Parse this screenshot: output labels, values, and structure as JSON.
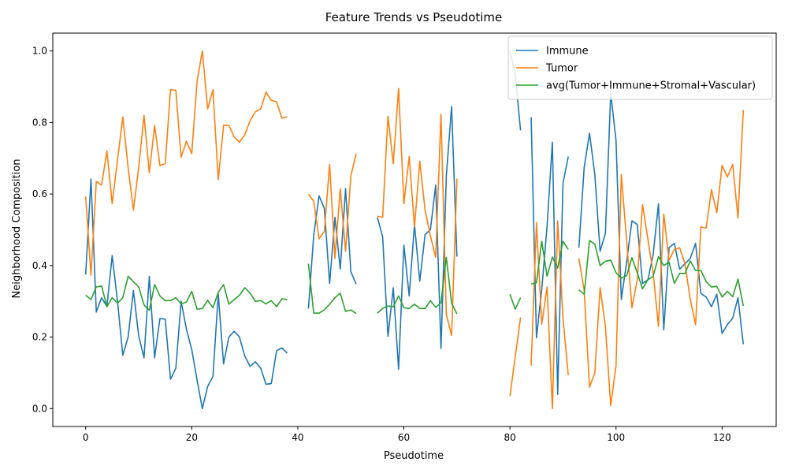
{
  "chart_data": {
    "type": "line",
    "title": "Feature Trends vs Pseudotime",
    "xlabel": "Pseudotime",
    "ylabel": "Neighborhood Composition",
    "xlim": [
      -6.2,
      130.2
    ],
    "ylim": [
      -0.05,
      1.05
    ],
    "xticks": [
      0,
      20,
      40,
      60,
      80,
      100,
      120
    ],
    "yticks": [
      0.0,
      0.2,
      0.4,
      0.6,
      0.8,
      1.0
    ],
    "grid": false,
    "legend_position": "top-right",
    "x": [
      0,
      1,
      2,
      3,
      4,
      5,
      6,
      7,
      8,
      9,
      10,
      11,
      12,
      13,
      14,
      15,
      16,
      17,
      18,
      19,
      20,
      21,
      22,
      23,
      24,
      25,
      26,
      27,
      28,
      29,
      30,
      31,
      32,
      33,
      34,
      35,
      36,
      37,
      38,
      39,
      40,
      41,
      42,
      43,
      44,
      45,
      46,
      47,
      48,
      49,
      50,
      51,
      52,
      53,
      54,
      55,
      56,
      57,
      58,
      59,
      60,
      61,
      62,
      63,
      64,
      65,
      66,
      67,
      68,
      69,
      70,
      71,
      72,
      73,
      74,
      75,
      76,
      77,
      78,
      79,
      80,
      81,
      82,
      83,
      84,
      85,
      86,
      87,
      88,
      89,
      90,
      91,
      92,
      93,
      94,
      95,
      96,
      97,
      98,
      99,
      100,
      101,
      102,
      103,
      104,
      105,
      106,
      107,
      108,
      109,
      110,
      111,
      112,
      113,
      114,
      115,
      116,
      117,
      118,
      119,
      120,
      121,
      122,
      123,
      124
    ],
    "series": [
      {
        "name": "Immune",
        "color": "#1f77b4",
        "values": [
          0.375,
          0.642,
          0.27,
          0.31,
          0.286,
          0.428,
          0.3,
          0.149,
          0.2,
          0.33,
          0.203,
          0.142,
          0.37,
          0.142,
          0.252,
          0.25,
          0.082,
          0.113,
          0.3,
          0.222,
          0.165,
          0.08,
          0.0,
          0.062,
          0.09,
          0.32,
          0.125,
          0.2,
          0.216,
          0.2,
          0.147,
          0.118,
          0.131,
          0.113,
          0.068,
          0.07,
          0.162,
          0.17,
          0.155,
          null,
          null,
          null,
          0.28,
          0.485,
          0.595,
          0.56,
          0.35,
          0.535,
          0.39,
          0.615,
          0.383,
          0.348,
          null,
          null,
          null,
          0.535,
          0.48,
          0.202,
          0.338,
          0.11,
          0.457,
          0.315,
          0.515,
          0.356,
          0.487,
          0.5,
          0.625,
          0.168,
          0.65,
          0.845,
          0.425,
          null,
          null,
          null,
          null,
          null,
          null,
          null,
          null,
          null,
          1.0,
          0.935,
          0.778,
          null,
          0.815,
          0.198,
          0.334,
          0.51,
          0.745,
          0.04,
          0.63,
          0.705,
          null,
          0.45,
          0.675,
          0.77,
          0.655,
          0.44,
          0.49,
          0.882,
          0.75,
          0.305,
          0.41,
          0.525,
          0.515,
          0.35,
          0.36,
          0.43,
          0.573,
          0.22,
          0.45,
          0.462,
          0.39,
          0.405,
          0.42,
          0.462,
          0.322,
          0.312,
          0.285,
          0.32,
          0.21,
          0.235,
          0.253,
          0.31,
          0.18
        ]
      },
      {
        "name": "Tumor",
        "color": "#ff7f0e",
        "values": [
          0.593,
          0.373,
          0.635,
          0.625,
          0.72,
          0.573,
          0.695,
          0.815,
          0.675,
          0.555,
          0.675,
          0.82,
          0.66,
          0.792,
          0.68,
          0.685,
          0.892,
          0.89,
          0.703,
          0.748,
          0.713,
          0.915,
          1.0,
          0.838,
          0.892,
          0.64,
          0.792,
          0.792,
          0.76,
          0.745,
          0.766,
          0.805,
          0.83,
          0.838,
          0.885,
          0.862,
          0.858,
          0.812,
          0.816,
          null,
          null,
          null,
          0.6,
          0.58,
          0.475,
          0.495,
          0.683,
          0.42,
          0.615,
          0.44,
          0.65,
          0.713,
          null,
          null,
          null,
          0.538,
          0.535,
          0.818,
          0.685,
          0.895,
          0.573,
          0.705,
          0.508,
          0.692,
          0.555,
          0.483,
          0.423,
          0.823,
          0.263,
          0.205,
          0.643,
          null,
          null,
          null,
          null,
          null,
          null,
          null,
          null,
          null,
          0.035,
          0.145,
          0.255,
          null,
          0.12,
          0.52,
          0.236,
          0.34,
          0.0,
          0.525,
          0.252,
          0.093,
          null,
          0.42,
          0.33,
          0.06,
          0.1,
          0.338,
          0.23,
          0.008,
          0.12,
          0.655,
          0.47,
          0.282,
          0.36,
          0.57,
          0.475,
          0.38,
          0.23,
          0.544,
          0.415,
          0.445,
          0.45,
          0.405,
          0.305,
          0.235,
          0.508,
          0.505,
          0.612,
          0.548,
          0.68,
          0.648,
          0.683,
          0.533,
          0.835
        ]
      },
      {
        "name": "avg(Tumor+Immune+Stromal+Vascular)",
        "color": "#2ca02c",
        "values": [
          0.317,
          0.305,
          0.34,
          0.343,
          0.285,
          0.31,
          0.295,
          0.31,
          0.37,
          0.355,
          0.34,
          0.29,
          0.275,
          0.347,
          0.315,
          0.302,
          0.302,
          0.31,
          0.293,
          0.298,
          0.328,
          0.278,
          0.28,
          0.303,
          0.282,
          0.325,
          0.347,
          0.292,
          0.305,
          0.317,
          0.338,
          0.323,
          0.3,
          0.302,
          0.293,
          0.302,
          0.285,
          0.307,
          0.305,
          null,
          null,
          null,
          0.405,
          0.267,
          0.267,
          0.276,
          0.292,
          0.31,
          0.323,
          0.272,
          0.276,
          0.266,
          null,
          null,
          null,
          0.267,
          0.28,
          0.287,
          0.285,
          0.315,
          0.282,
          0.28,
          0.292,
          0.28,
          0.28,
          0.302,
          0.283,
          0.296,
          0.423,
          0.295,
          0.265,
          null,
          null,
          null,
          null,
          null,
          null,
          null,
          null,
          null,
          0.32,
          0.278,
          0.31,
          null,
          0.348,
          0.352,
          0.468,
          0.37,
          0.424,
          0.393,
          0.468,
          0.445,
          null,
          0.332,
          0.32,
          0.47,
          0.46,
          0.4,
          0.412,
          0.415,
          0.38,
          0.365,
          0.372,
          0.422,
          0.38,
          0.335,
          0.36,
          0.37,
          0.425,
          0.4,
          0.41,
          0.35,
          0.378,
          0.378,
          0.413,
          0.386,
          0.386,
          0.355,
          0.34,
          0.342,
          0.312,
          0.328,
          0.313,
          0.362,
          0.287
        ]
      }
    ]
  }
}
